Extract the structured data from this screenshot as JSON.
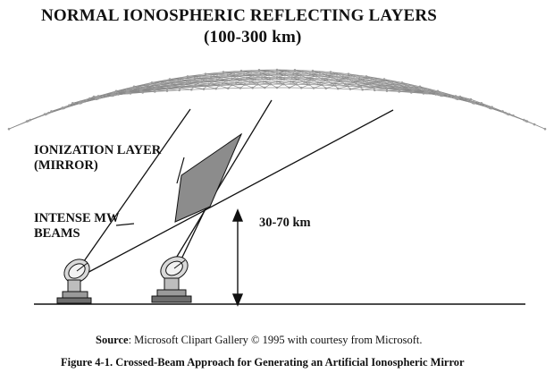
{
  "title": {
    "line1": "NORMAL IONOSPHERIC REFLECTING LAYERS",
    "line2": "(100-300 km)"
  },
  "labels": {
    "ionization_line1": "IONIZATION LAYER",
    "ionization_line2": "(MIRROR)",
    "beams_line1": "INTENSE MW",
    "beams_line2": "BEAMS",
    "altitude": "30-70 km"
  },
  "source": {
    "prefix": "Source",
    "text": ": Microsoft Clipart Gallery © 1995 with courtesy from Microsoft."
  },
  "caption": "Figure 4-1.  Crossed-Beam Approach for Generating an Artificial Ionospheric Mirror",
  "colors": {
    "ink": "#111111",
    "mesh": "#8a8a8a",
    "mirror_fill": "#8c8c8c"
  }
}
